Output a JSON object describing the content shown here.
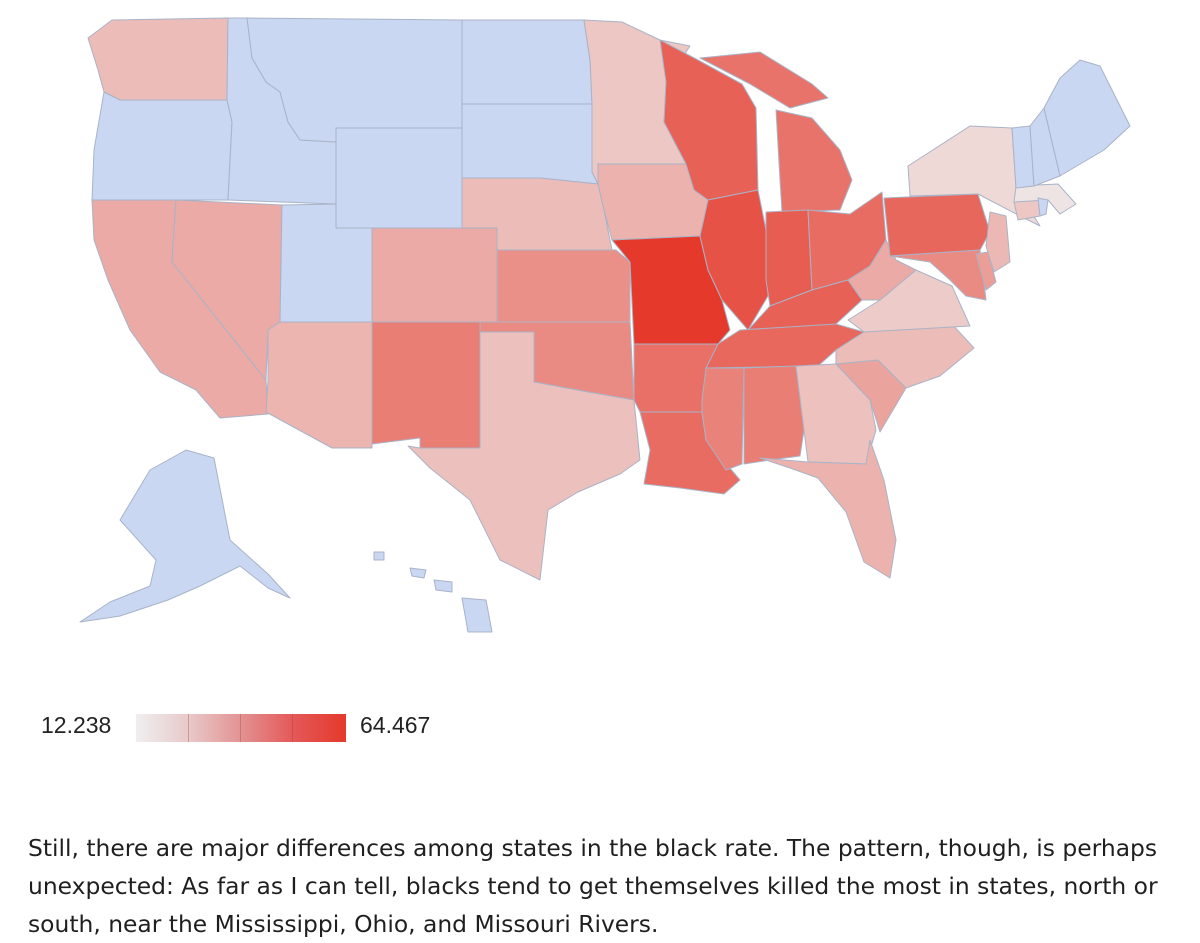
{
  "map": {
    "type": "choropleth",
    "region": "United States",
    "color_min": "#c9d7f3",
    "color_mid": "#efefef",
    "color_max": "#e5392b",
    "border_color": "#a9b3c7"
  },
  "legend": {
    "min_label": "12.238",
    "max_label": "64.467",
    "min_value": 12.238,
    "max_value": 64.467
  },
  "chart_data": {
    "type": "map",
    "scale": {
      "min": 12.238,
      "max": 64.467
    },
    "states": [
      {
        "code": "WA",
        "level": 0.28
      },
      {
        "code": "OR",
        "level": 0.0
      },
      {
        "code": "CA",
        "level": 0.38
      },
      {
        "code": "NV",
        "level": 0.38
      },
      {
        "code": "ID",
        "level": 0.0
      },
      {
        "code": "MT",
        "level": 0.0
      },
      {
        "code": "WY",
        "level": 0.0
      },
      {
        "code": "UT",
        "level": 0.0
      },
      {
        "code": "AZ",
        "level": 0.32
      },
      {
        "code": "CO",
        "level": 0.38
      },
      {
        "code": "NM",
        "level": 0.62
      },
      {
        "code": "ND",
        "level": 0.0
      },
      {
        "code": "SD",
        "level": 0.0
      },
      {
        "code": "NE",
        "level": 0.28
      },
      {
        "code": "KS",
        "level": 0.52
      },
      {
        "code": "OK",
        "level": 0.55
      },
      {
        "code": "TX",
        "level": 0.26
      },
      {
        "code": "MN",
        "level": 0.22
      },
      {
        "code": "IA",
        "level": 0.33
      },
      {
        "code": "MO",
        "level": 1.0
      },
      {
        "code": "AR",
        "level": 0.7
      },
      {
        "code": "LA",
        "level": 0.72
      },
      {
        "code": "WI",
        "level": 0.78
      },
      {
        "code": "IL",
        "level": 0.86
      },
      {
        "code": "MI",
        "level": 0.68
      },
      {
        "code": "IN",
        "level": 0.8
      },
      {
        "code": "OH",
        "level": 0.72
      },
      {
        "code": "KY",
        "level": 0.78
      },
      {
        "code": "TN",
        "level": 0.74
      },
      {
        "code": "MS",
        "level": 0.6
      },
      {
        "code": "AL",
        "level": 0.62
      },
      {
        "code": "GA",
        "level": 0.25
      },
      {
        "code": "FL",
        "level": 0.33
      },
      {
        "code": "SC",
        "level": 0.42
      },
      {
        "code": "NC",
        "level": 0.28
      },
      {
        "code": "VA",
        "level": 0.2
      },
      {
        "code": "WV",
        "level": 0.38
      },
      {
        "code": "PA",
        "level": 0.75
      },
      {
        "code": "NY",
        "level": 0.12
      },
      {
        "code": "MD",
        "level": 0.55
      },
      {
        "code": "DE",
        "level": 0.45
      },
      {
        "code": "NJ",
        "level": 0.3
      },
      {
        "code": "CT",
        "level": 0.22
      },
      {
        "code": "MA",
        "level": 0.06
      },
      {
        "code": "RI",
        "level": 0.0
      },
      {
        "code": "VT",
        "level": 0.0
      },
      {
        "code": "NH",
        "level": 0.0
      },
      {
        "code": "ME",
        "level": 0.0
      },
      {
        "code": "AK",
        "level": 0.0
      },
      {
        "code": "HI",
        "level": 0.0
      }
    ]
  },
  "caption": {
    "text": "Still, there are major differences among states in the black rate. The pattern, though, is perhaps unexpected: As far as I can tell, blacks tend to get themselves killed the most in states, north or south, near the Mississippi, Ohio, and Missouri Rivers."
  }
}
